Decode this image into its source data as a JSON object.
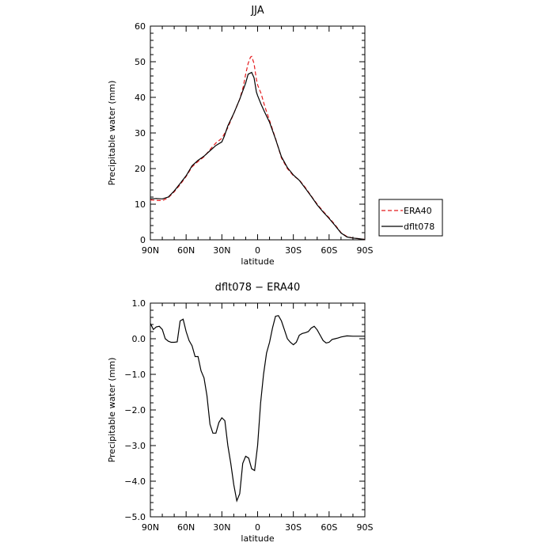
{
  "chart_data": [
    {
      "type": "line",
      "title": "JJA",
      "xlabel": "latitude",
      "ylabel": "Precipitable water  (mm)",
      "xlim": [
        90,
        -90
      ],
      "ylim": [
        0,
        60
      ],
      "x_ticks": [
        90,
        60,
        30,
        0,
        -30,
        -60,
        -90
      ],
      "x_tick_labels": [
        "90N",
        "60N",
        "30N",
        "0",
        "30S",
        "60S",
        "90S"
      ],
      "y_ticks": [
        0,
        10,
        20,
        30,
        40,
        50,
        60
      ],
      "y_tick_labels": [
        "0",
        "10",
        "20",
        "30",
        "40",
        "50",
        "60"
      ],
      "legend_position": "right",
      "series": [
        {
          "name": "ERA40",
          "color": "#e41a1c",
          "dash": "dashed",
          "points": [
            [
              90,
              11.2
            ],
            [
              85,
              11.1
            ],
            [
              80,
              11.0
            ],
            [
              75,
              11.8
            ],
            [
              70,
              13.5
            ],
            [
              65,
              15.5
            ],
            [
              60,
              17.8
            ],
            [
              55,
              20.5
            ],
            [
              50,
              22.0
            ],
            [
              45,
              23.3
            ],
            [
              40,
              25.3
            ],
            [
              35,
              27.2
            ],
            [
              30,
              28.5
            ],
            [
              25,
              31.5
            ],
            [
              20,
              35.5
            ],
            [
              15,
              39.5
            ],
            [
              12,
              43.0
            ],
            [
              10,
              46.5
            ],
            [
              8,
              49.5
            ],
            [
              6,
              51.3
            ],
            [
              5,
              51.5
            ],
            [
              3,
              49.5
            ],
            [
              1,
              45.0
            ],
            [
              0,
              43.5
            ],
            [
              -3,
              41.0
            ],
            [
              -6,
              37.5
            ],
            [
              -10,
              33.5
            ],
            [
              -15,
              28.5
            ],
            [
              -20,
              23.0
            ],
            [
              -25,
              20.0
            ],
            [
              -30,
              18.0
            ],
            [
              -35,
              16.8
            ],
            [
              -40,
              14.7
            ],
            [
              -45,
              12.3
            ],
            [
              -50,
              10.0
            ],
            [
              -55,
              8.0
            ],
            [
              -60,
              6.2
            ],
            [
              -65,
              4.2
            ],
            [
              -70,
              2.0
            ],
            [
              -75,
              0.9
            ],
            [
              -80,
              0.5
            ],
            [
              -85,
              0.3
            ],
            [
              -90,
              0.1
            ]
          ]
        },
        {
          "name": "dflt078",
          "color": "#000000",
          "dash": "solid",
          "points": [
            [
              90,
              11.5
            ],
            [
              85,
              11.6
            ],
            [
              80,
              11.5
            ],
            [
              75,
              12.0
            ],
            [
              70,
              13.7
            ],
            [
              65,
              15.8
            ],
            [
              60,
              18.0
            ],
            [
              55,
              20.8
            ],
            [
              50,
              22.3
            ],
            [
              45,
              23.5
            ],
            [
              40,
              25.0
            ],
            [
              35,
              26.5
            ],
            [
              30,
              27.5
            ],
            [
              28,
              29.0
            ],
            [
              25,
              32.0
            ],
            [
              20,
              35.5
            ],
            [
              15,
              39.5
            ],
            [
              10,
              44.0
            ],
            [
              8,
              46.5
            ],
            [
              5,
              47.0
            ],
            [
              3,
              45.5
            ],
            [
              1,
              41.5
            ],
            [
              0,
              40.5
            ],
            [
              -3,
              38.0
            ],
            [
              -6,
              35.8
            ],
            [
              -10,
              33.0
            ],
            [
              -15,
              28.3
            ],
            [
              -20,
              23.3
            ],
            [
              -25,
              20.3
            ],
            [
              -30,
              18.2
            ],
            [
              -35,
              16.7
            ],
            [
              -40,
              14.5
            ],
            [
              -45,
              12.2
            ],
            [
              -50,
              9.8
            ],
            [
              -55,
              7.8
            ],
            [
              -60,
              6.0
            ],
            [
              -65,
              4.0
            ],
            [
              -70,
              1.9
            ],
            [
              -75,
              0.8
            ],
            [
              -80,
              0.5
            ],
            [
              -85,
              0.3
            ],
            [
              -90,
              0.1
            ]
          ]
        }
      ]
    },
    {
      "type": "line",
      "title": "dflt078 − ERA40",
      "xlabel": "latitude",
      "ylabel": "Precipitable water  (mm)",
      "xlim": [
        90,
        -90
      ],
      "ylim": [
        -5,
        1
      ],
      "x_ticks": [
        90,
        60,
        30,
        0,
        -30,
        -60,
        -90
      ],
      "x_tick_labels": [
        "90N",
        "60N",
        "30N",
        "0",
        "30S",
        "60S",
        "90S"
      ],
      "y_ticks": [
        1,
        0,
        -1,
        -2,
        -3,
        -4,
        -5
      ],
      "y_tick_labels": [
        "1.0",
        "0.0",
        "−1.0",
        "−2.0",
        "−3.0",
        "−4.0",
        "−5.0"
      ],
      "series": [
        {
          "name": "",
          "color": "#000000",
          "dash": "solid",
          "points": [
            [
              90,
              0.43
            ],
            [
              87.5,
              0.26
            ],
            [
              85,
              0.33
            ],
            [
              82.5,
              0.35
            ],
            [
              80,
              0.26
            ],
            [
              77.5,
              0.0
            ],
            [
              75,
              -0.07
            ],
            [
              72.5,
              -0.1
            ],
            [
              70,
              -0.1
            ],
            [
              67.5,
              -0.09
            ],
            [
              65,
              0.5
            ],
            [
              62.5,
              0.55
            ],
            [
              60,
              0.2
            ],
            [
              57.5,
              -0.05
            ],
            [
              55,
              -0.2
            ],
            [
              52.5,
              -0.5
            ],
            [
              50,
              -0.5
            ],
            [
              47.5,
              -0.9
            ],
            [
              45,
              -1.1
            ],
            [
              42.5,
              -1.6
            ],
            [
              40,
              -2.4
            ],
            [
              37.5,
              -2.65
            ],
            [
              35,
              -2.65
            ],
            [
              32.5,
              -2.35
            ],
            [
              30,
              -2.22
            ],
            [
              27.5,
              -2.3
            ],
            [
              25,
              -3.0
            ],
            [
              22.5,
              -3.5
            ],
            [
              20,
              -4.1
            ],
            [
              17.5,
              -4.55
            ],
            [
              15,
              -4.35
            ],
            [
              12.5,
              -3.5
            ],
            [
              10,
              -3.3
            ],
            [
              7.5,
              -3.35
            ],
            [
              5,
              -3.65
            ],
            [
              2.5,
              -3.7
            ],
            [
              0,
              -3.0
            ],
            [
              -2.5,
              -1.8
            ],
            [
              -5,
              -1.0
            ],
            [
              -7.5,
              -0.4
            ],
            [
              -10,
              -0.1
            ],
            [
              -12.5,
              0.3
            ],
            [
              -15,
              0.63
            ],
            [
              -17.5,
              0.65
            ],
            [
              -20,
              0.5
            ],
            [
              -22.5,
              0.25
            ],
            [
              -25,
              0.0
            ],
            [
              -27.5,
              -0.1
            ],
            [
              -30,
              -0.17
            ],
            [
              -32.5,
              -0.1
            ],
            [
              -35,
              0.1
            ],
            [
              -37.5,
              0.15
            ],
            [
              -40,
              0.17
            ],
            [
              -42.5,
              0.2
            ],
            [
              -45,
              0.3
            ],
            [
              -47.5,
              0.35
            ],
            [
              -50,
              0.25
            ],
            [
              -52.5,
              0.1
            ],
            [
              -55,
              -0.05
            ],
            [
              -57.5,
              -0.12
            ],
            [
              -60,
              -0.1
            ],
            [
              -62.5,
              -0.02
            ],
            [
              -65,
              0.0
            ],
            [
              -67.5,
              0.02
            ],
            [
              -70,
              0.05
            ],
            [
              -75,
              0.08
            ],
            [
              -80,
              0.07
            ],
            [
              -85,
              0.07
            ],
            [
              -90,
              0.07
            ]
          ]
        }
      ]
    }
  ]
}
